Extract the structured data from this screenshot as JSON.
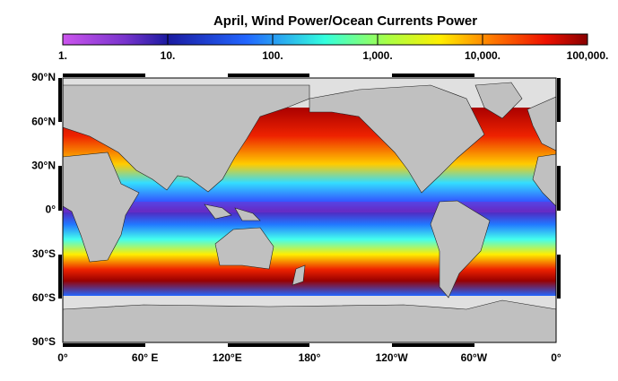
{
  "title": "April, Wind Power/Ocean Currents Power",
  "colorbar": {
    "labels": [
      "1.",
      "10.",
      "100.",
      "1,000.",
      "10,000.",
      "100,000."
    ]
  },
  "lat_labels": [
    "90°N",
    "60°N",
    "30°N",
    "0°",
    "30°S",
    "60°S",
    "90°S"
  ],
  "lon_labels": [
    "0°",
    "60° E",
    "120°E",
    "180°",
    "120°W",
    "60°W",
    "0°"
  ]
}
